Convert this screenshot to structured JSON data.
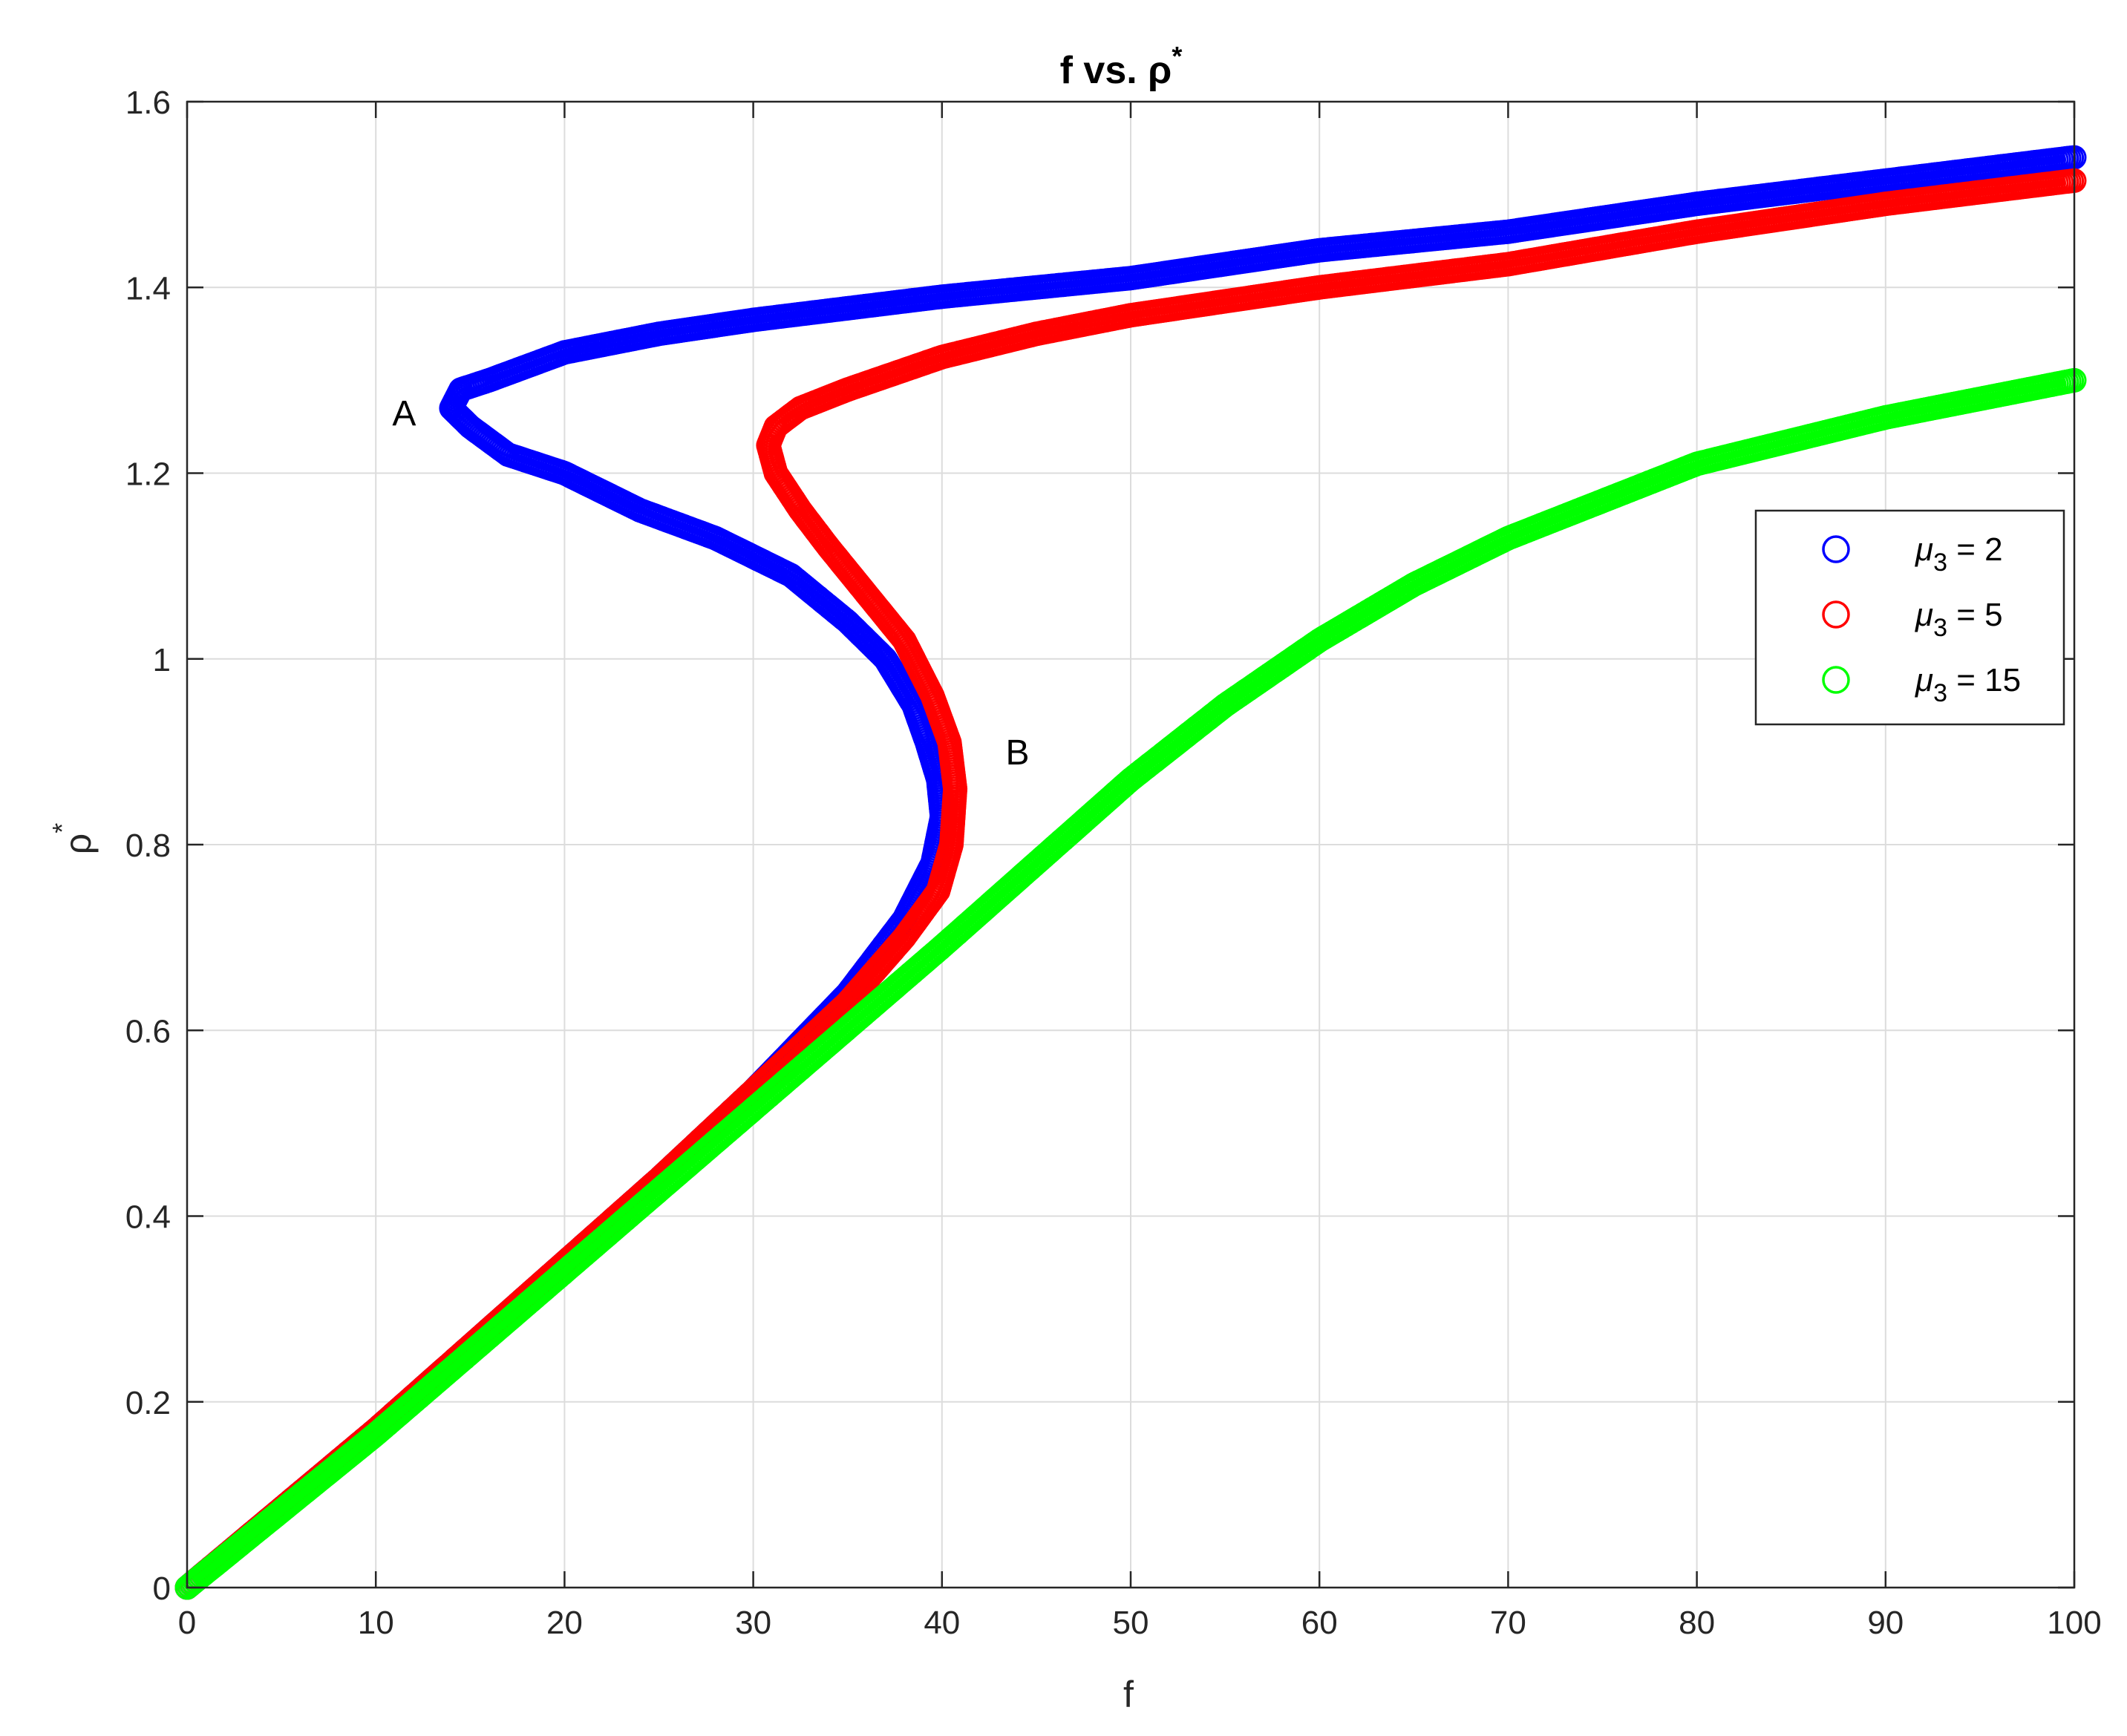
{
  "chart_data": {
    "type": "scatter",
    "title": "f vs. ρ",
    "title_sup": "*",
    "xlabel": "f",
    "ylabel": "ρ",
    "ylabel_sup": "*",
    "xlim": [
      0,
      100
    ],
    "ylim": [
      0,
      1.6
    ],
    "xticks": [
      0,
      10,
      20,
      30,
      40,
      50,
      60,
      70,
      80,
      90,
      100
    ],
    "xtick_labels": [
      "0",
      "10",
      "20",
      "30",
      "40",
      "50",
      "60",
      "70",
      "80",
      "90",
      "100"
    ],
    "yticks": [
      0,
      0.2,
      0.4,
      0.6,
      0.8,
      1,
      1.2,
      1.4,
      1.6
    ],
    "ytick_labels": [
      "0",
      "0.2",
      "0.4",
      "0.6",
      "0.8",
      "1",
      "1.2",
      "1.4",
      "1.6"
    ],
    "grid": true,
    "legend_position": "right",
    "marker": "open-circle",
    "series": [
      {
        "name": "μ3 = 2",
        "legend_mu": "μ",
        "legend_sub": "3",
        "legend_rest": " = 2",
        "color": "#0000ff",
        "x": [
          0,
          10,
          20,
          25,
          30,
          35,
          38,
          39.5,
          40,
          39.8,
          39.2,
          38.5,
          37,
          35,
          32,
          28,
          24,
          20,
          17,
          15,
          14,
          14.5,
          16,
          20,
          25,
          30,
          40,
          50,
          60,
          70,
          80,
          90,
          100
        ],
        "y": [
          0,
          0.17,
          0.35,
          0.44,
          0.535,
          0.64,
          0.72,
          0.78,
          0.83,
          0.87,
          0.91,
          0.95,
          1.0,
          1.04,
          1.09,
          1.13,
          1.16,
          1.2,
          1.22,
          1.25,
          1.27,
          1.29,
          1.3,
          1.33,
          1.35,
          1.365,
          1.39,
          1.41,
          1.44,
          1.46,
          1.49,
          1.515,
          1.54
        ]
      },
      {
        "name": "μ3 = 5",
        "legend_mu": "μ",
        "legend_sub": "3",
        "legend_rest": " = 5",
        "color": "#ff0000",
        "x": [
          0,
          10,
          20,
          25,
          30,
          35,
          38,
          39.8,
          40.5,
          40.7,
          40.4,
          39.5,
          38,
          36,
          34,
          32.5,
          31.2,
          30.8,
          31.2,
          32.5,
          35,
          40,
          45,
          50,
          60,
          70,
          80,
          90,
          100
        ],
        "y": [
          0,
          0.17,
          0.35,
          0.44,
          0.535,
          0.63,
          0.7,
          0.75,
          0.8,
          0.86,
          0.91,
          0.96,
          1.02,
          1.07,
          1.12,
          1.16,
          1.2,
          1.23,
          1.25,
          1.27,
          1.29,
          1.325,
          1.35,
          1.37,
          1.4,
          1.425,
          1.46,
          1.49,
          1.515
        ]
      },
      {
        "name": "μ3 = 15",
        "legend_mu": "μ",
        "legend_sub": "3",
        "legend_rest": " = 15",
        "color": "#00ff00",
        "x": [
          0,
          10,
          20,
          30,
          40,
          45,
          50,
          55,
          60,
          65,
          70,
          80,
          90,
          100
        ],
        "y": [
          0,
          0.165,
          0.34,
          0.515,
          0.69,
          0.78,
          0.87,
          0.95,
          1.02,
          1.08,
          1.13,
          1.21,
          1.26,
          1.3
        ]
      }
    ],
    "annotations": [
      {
        "text": "A",
        "x": 11.5,
        "y": 1.265
      },
      {
        "text": "B",
        "x": 44,
        "y": 0.9
      }
    ]
  }
}
